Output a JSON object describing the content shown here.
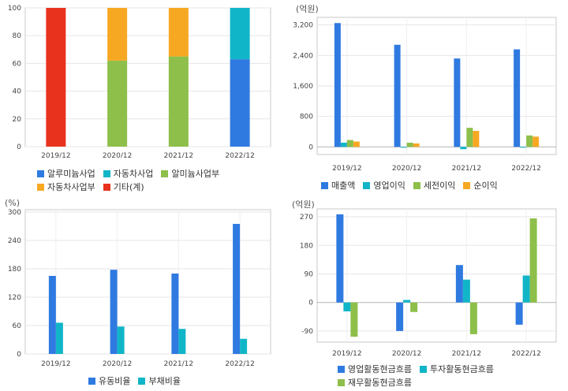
{
  "charts": {
    "revenue_mix": {
      "unit": "",
      "legend": {
        "row1": [
          {
            "name": "알루미늄사업",
            "color": "#2f7ae0"
          },
          {
            "name": "자동차사업",
            "color": "#11b5c8"
          },
          {
            "name": "알미늄사업부",
            "color": "#8dbf4a"
          }
        ],
        "row2": [
          {
            "name": "자동차사업부",
            "color": "#f7a823"
          },
          {
            "name": "기타(계)",
            "color": "#e8321e"
          }
        ]
      }
    },
    "income": {
      "unit": "(억원)",
      "legend": {
        "row1": [
          {
            "name": "매출액",
            "color": "#2f7ae0"
          },
          {
            "name": "영업이익",
            "color": "#11b5c8"
          },
          {
            "name": "세전이익",
            "color": "#8dbf4a"
          },
          {
            "name": "순이익",
            "color": "#f7a823"
          }
        ]
      }
    },
    "ratios": {
      "unit": "(%)",
      "legend": {
        "row1": [
          {
            "name": "유동비율",
            "color": "#2f7ae0"
          },
          {
            "name": "부채비율",
            "color": "#11b5c8"
          }
        ]
      }
    },
    "cashflow": {
      "unit": "(억원)",
      "legend": {
        "row1": [
          {
            "name": "영업활동현금흐름",
            "color": "#2f7ae0"
          },
          {
            "name": "투자활동현금흐름",
            "color": "#11b5c8"
          }
        ],
        "row2": [
          {
            "name": "재무활동현금흐름",
            "color": "#8dbf4a"
          }
        ]
      }
    }
  },
  "chart_data": [
    {
      "type": "bar",
      "stacked": true,
      "categories": [
        "2019/12",
        "2020/12",
        "2021/12",
        "2022/12"
      ],
      "series": [
        {
          "name": "알루미늄사업",
          "color": "#2f7ae0",
          "values": [
            0,
            0,
            0,
            63
          ]
        },
        {
          "name": "자동차사업",
          "color": "#11b5c8",
          "values": [
            0,
            0,
            0,
            37
          ]
        },
        {
          "name": "알미늄사업부",
          "color": "#8dbf4a",
          "values": [
            0,
            62,
            65,
            0
          ]
        },
        {
          "name": "자동차사업부",
          "color": "#f7a823",
          "values": [
            0,
            38,
            35,
            0
          ]
        },
        {
          "name": "기타(계)",
          "color": "#e8321e",
          "values": [
            100,
            0,
            0,
            0
          ]
        }
      ],
      "ylim": [
        0,
        100
      ],
      "yticks": [
        0,
        20,
        40,
        60,
        80,
        100
      ],
      "grid": true
    },
    {
      "type": "bar",
      "categories": [
        "2019/12",
        "2020/12",
        "2021/12",
        "2022/12"
      ],
      "series": [
        {
          "name": "매출액",
          "color": "#2f7ae0",
          "values": [
            3250,
            2680,
            2320,
            2560
          ]
        },
        {
          "name": "영업이익",
          "color": "#11b5c8",
          "values": [
            110,
            -20,
            -60,
            -20
          ]
        },
        {
          "name": "세전이익",
          "color": "#8dbf4a",
          "values": [
            180,
            110,
            500,
            300
          ]
        },
        {
          "name": "순이익",
          "color": "#f7a823",
          "values": [
            140,
            90,
            420,
            270
          ]
        }
      ],
      "ylim": [
        -200,
        3400
      ],
      "yticks": [
        0,
        800,
        1600,
        2400,
        3200
      ],
      "ytick_labels": [
        "0",
        "800",
        "1,600",
        "2,400",
        "3,200"
      ],
      "grid": true
    },
    {
      "type": "bar",
      "categories": [
        "2019/12",
        "2020/12",
        "2021/12",
        "2022/12"
      ],
      "series": [
        {
          "name": "유동비율",
          "color": "#2f7ae0",
          "values": [
            165,
            178,
            170,
            275
          ]
        },
        {
          "name": "부채비율",
          "color": "#11b5c8",
          "values": [
            66,
            58,
            53,
            32
          ]
        }
      ],
      "ylim": [
        0,
        305
      ],
      "yticks": [
        0,
        60,
        120,
        180,
        240,
        300
      ],
      "grid": true
    },
    {
      "type": "bar",
      "categories": [
        "2019/12",
        "2020/12",
        "2021/12",
        "2022/12"
      ],
      "series": [
        {
          "name": "영업활동현금흐름",
          "color": "#2f7ae0",
          "values": [
            278,
            -90,
            118,
            -70
          ]
        },
        {
          "name": "투자활동현금흐름",
          "color": "#11b5c8",
          "values": [
            -28,
            8,
            72,
            85
          ]
        },
        {
          "name": "재무활동현금흐름",
          "color": "#8dbf4a",
          "values": [
            -108,
            -30,
            -100,
            265
          ]
        }
      ],
      "ylim": [
        -125,
        295
      ],
      "yticks": [
        -90,
        0,
        90,
        180,
        270
      ],
      "grid": true
    }
  ]
}
